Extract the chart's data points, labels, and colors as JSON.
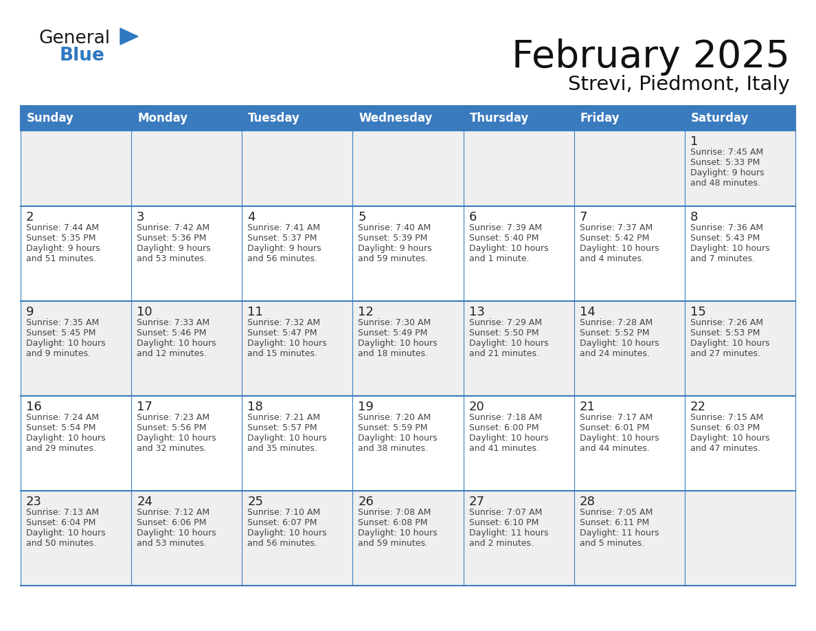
{
  "title": "February 2025",
  "subtitle": "Strevi, Piedmont, Italy",
  "days_of_week": [
    "Sunday",
    "Monday",
    "Tuesday",
    "Wednesday",
    "Thursday",
    "Friday",
    "Saturday"
  ],
  "header_bg": "#3a7bbf",
  "header_text": "#ffffff",
  "cell_bg_gray": "#efefef",
  "cell_bg_white": "#ffffff",
  "border_color": "#3a7bbf",
  "text_color": "#444444",
  "day_number_color": "#222222",
  "calendar_data": [
    [
      null,
      null,
      null,
      null,
      null,
      null,
      {
        "day": 1,
        "sunrise": "7:45 AM",
        "sunset": "5:33 PM",
        "daylight": "9 hours",
        "daylight2": "and 48 minutes."
      }
    ],
    [
      {
        "day": 2,
        "sunrise": "7:44 AM",
        "sunset": "5:35 PM",
        "daylight": "9 hours",
        "daylight2": "and 51 minutes."
      },
      {
        "day": 3,
        "sunrise": "7:42 AM",
        "sunset": "5:36 PM",
        "daylight": "9 hours",
        "daylight2": "and 53 minutes."
      },
      {
        "day": 4,
        "sunrise": "7:41 AM",
        "sunset": "5:37 PM",
        "daylight": "9 hours",
        "daylight2": "and 56 minutes."
      },
      {
        "day": 5,
        "sunrise": "7:40 AM",
        "sunset": "5:39 PM",
        "daylight": "9 hours",
        "daylight2": "and 59 minutes."
      },
      {
        "day": 6,
        "sunrise": "7:39 AM",
        "sunset": "5:40 PM",
        "daylight": "10 hours",
        "daylight2": "and 1 minute."
      },
      {
        "day": 7,
        "sunrise": "7:37 AM",
        "sunset": "5:42 PM",
        "daylight": "10 hours",
        "daylight2": "and 4 minutes."
      },
      {
        "day": 8,
        "sunrise": "7:36 AM",
        "sunset": "5:43 PM",
        "daylight": "10 hours",
        "daylight2": "and 7 minutes."
      }
    ],
    [
      {
        "day": 9,
        "sunrise": "7:35 AM",
        "sunset": "5:45 PM",
        "daylight": "10 hours",
        "daylight2": "and 9 minutes."
      },
      {
        "day": 10,
        "sunrise": "7:33 AM",
        "sunset": "5:46 PM",
        "daylight": "10 hours",
        "daylight2": "and 12 minutes."
      },
      {
        "day": 11,
        "sunrise": "7:32 AM",
        "sunset": "5:47 PM",
        "daylight": "10 hours",
        "daylight2": "and 15 minutes."
      },
      {
        "day": 12,
        "sunrise": "7:30 AM",
        "sunset": "5:49 PM",
        "daylight": "10 hours",
        "daylight2": "and 18 minutes."
      },
      {
        "day": 13,
        "sunrise": "7:29 AM",
        "sunset": "5:50 PM",
        "daylight": "10 hours",
        "daylight2": "and 21 minutes."
      },
      {
        "day": 14,
        "sunrise": "7:28 AM",
        "sunset": "5:52 PM",
        "daylight": "10 hours",
        "daylight2": "and 24 minutes."
      },
      {
        "day": 15,
        "sunrise": "7:26 AM",
        "sunset": "5:53 PM",
        "daylight": "10 hours",
        "daylight2": "and 27 minutes."
      }
    ],
    [
      {
        "day": 16,
        "sunrise": "7:24 AM",
        "sunset": "5:54 PM",
        "daylight": "10 hours",
        "daylight2": "and 29 minutes."
      },
      {
        "day": 17,
        "sunrise": "7:23 AM",
        "sunset": "5:56 PM",
        "daylight": "10 hours",
        "daylight2": "and 32 minutes."
      },
      {
        "day": 18,
        "sunrise": "7:21 AM",
        "sunset": "5:57 PM",
        "daylight": "10 hours",
        "daylight2": "and 35 minutes."
      },
      {
        "day": 19,
        "sunrise": "7:20 AM",
        "sunset": "5:59 PM",
        "daylight": "10 hours",
        "daylight2": "and 38 minutes."
      },
      {
        "day": 20,
        "sunrise": "7:18 AM",
        "sunset": "6:00 PM",
        "daylight": "10 hours",
        "daylight2": "and 41 minutes."
      },
      {
        "day": 21,
        "sunrise": "7:17 AM",
        "sunset": "6:01 PM",
        "daylight": "10 hours",
        "daylight2": "and 44 minutes."
      },
      {
        "day": 22,
        "sunrise": "7:15 AM",
        "sunset": "6:03 PM",
        "daylight": "10 hours",
        "daylight2": "and 47 minutes."
      }
    ],
    [
      {
        "day": 23,
        "sunrise": "7:13 AM",
        "sunset": "6:04 PM",
        "daylight": "10 hours",
        "daylight2": "and 50 minutes."
      },
      {
        "day": 24,
        "sunrise": "7:12 AM",
        "sunset": "6:06 PM",
        "daylight": "10 hours",
        "daylight2": "and 53 minutes."
      },
      {
        "day": 25,
        "sunrise": "7:10 AM",
        "sunset": "6:07 PM",
        "daylight": "10 hours",
        "daylight2": "and 56 minutes."
      },
      {
        "day": 26,
        "sunrise": "7:08 AM",
        "sunset": "6:08 PM",
        "daylight": "10 hours",
        "daylight2": "and 59 minutes."
      },
      {
        "day": 27,
        "sunrise": "7:07 AM",
        "sunset": "6:10 PM",
        "daylight": "11 hours",
        "daylight2": "and 2 minutes."
      },
      {
        "day": 28,
        "sunrise": "7:05 AM",
        "sunset": "6:11 PM",
        "daylight": "11 hours",
        "daylight2": "and 5 minutes."
      },
      null
    ]
  ],
  "logo_general_color": "#1a1a1a",
  "logo_blue_color": "#2e78c0",
  "fig_width": 11.88,
  "fig_height": 9.18,
  "dpi": 100
}
